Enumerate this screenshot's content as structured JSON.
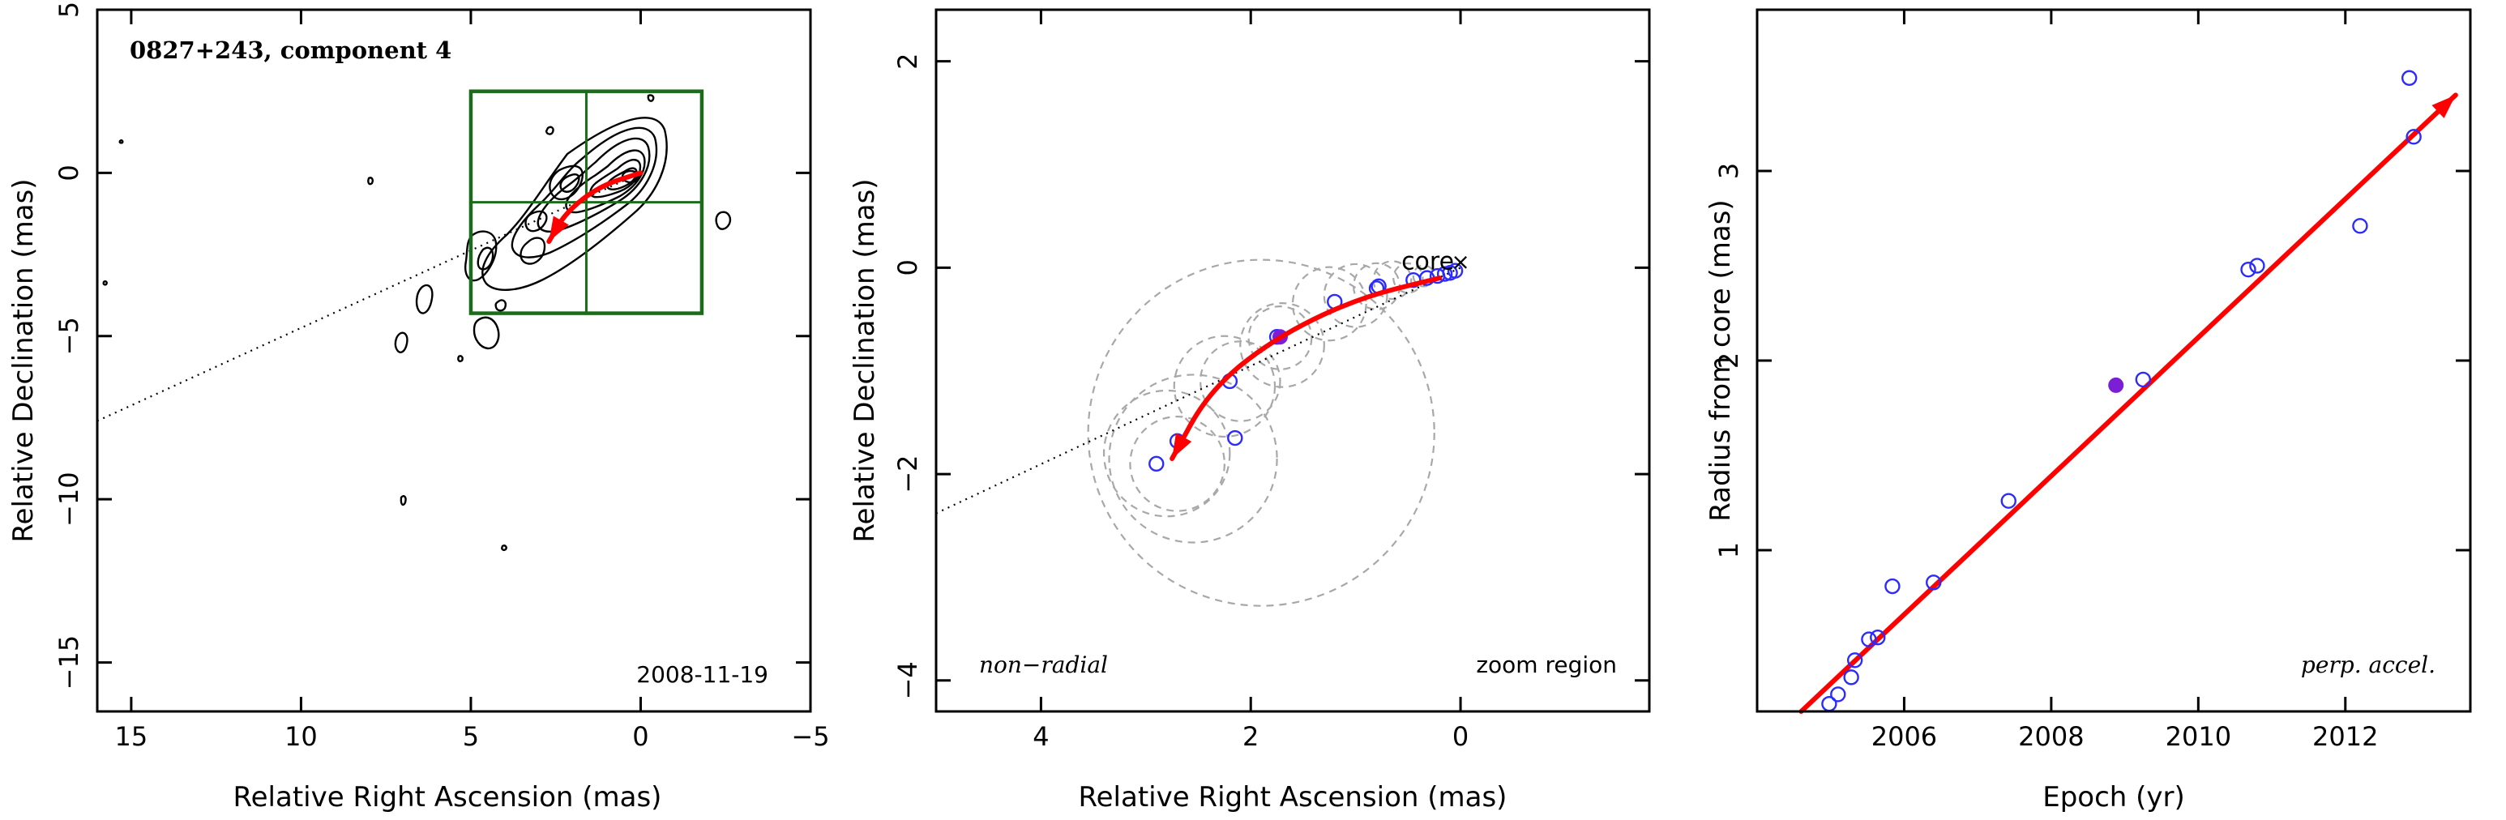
{
  "colors": {
    "axes": "#000000",
    "contours": "#000000",
    "zoom_box": "#1b6b1b",
    "arrow": "#ff0000",
    "points_open": "#2b2bff",
    "point_current": "#7a1fd6",
    "fit_circles": "#a8a8a8"
  },
  "chart_data": [
    {
      "type": "contour",
      "title": "0827+243, component 4",
      "date_label": "2008-11-19",
      "xlabel": "Relative Right Ascension (mas)",
      "ylabel": "Relative Declination (mas)",
      "xlim": [
        16,
        -5
      ],
      "ylim": [
        -16.5,
        5
      ],
      "x_ticks": [
        "15",
        "10",
        "5",
        "0",
        "−5"
      ],
      "y_ticks": [
        "5",
        "0",
        "−5",
        "−10",
        "−15"
      ],
      "x_tick_values": [
        15,
        10,
        5,
        0,
        -5
      ],
      "y_tick_values": [
        5,
        0,
        -5,
        -10,
        -15
      ],
      "zoom_region": {
        "ra_range": [
          5,
          -1.8
        ],
        "dec_range": [
          -4.3,
          2.5
        ]
      },
      "jet_axis_line": {
        "from": [
          16,
          -7.6
        ],
        "to": [
          0,
          0
        ]
      },
      "motion_path": [
        [
          0,
          0
        ],
        [
          1.2,
          -0.4
        ],
        [
          2.2,
          -1.2
        ],
        [
          2.7,
          -2.1
        ]
      ]
    },
    {
      "type": "scatter",
      "xlabel": "Relative Right Ascension (mas)",
      "ylabel": "Relative Declination (mas)",
      "xlim": [
        5,
        -1.8
      ],
      "ylim": [
        -4.3,
        2.5
      ],
      "x_ticks": [
        "4",
        "2",
        "0"
      ],
      "y_ticks": [
        "2",
        "0",
        "−2",
        "−4"
      ],
      "x_tick_values": [
        4,
        2,
        0
      ],
      "y_tick_values": [
        2,
        0,
        -2,
        -4
      ],
      "annotations": {
        "left": "non−radial",
        "right": "zoom region",
        "core": "core"
      },
      "core_position": [
        0,
        0
      ],
      "points": [
        {
          "x": 2.9,
          "y": -1.9
        },
        {
          "x": 2.7,
          "y": -1.68
        },
        {
          "x": 2.15,
          "y": -1.65
        },
        {
          "x": 2.2,
          "y": -1.1
        },
        {
          "x": 1.75,
          "y": -0.67
        },
        {
          "x": 1.2,
          "y": -0.33
        },
        {
          "x": 0.8,
          "y": -0.2
        },
        {
          "x": 0.78,
          "y": -0.18
        },
        {
          "x": 0.45,
          "y": -0.12
        },
        {
          "x": 0.32,
          "y": -0.1
        },
        {
          "x": 0.22,
          "y": -0.08
        },
        {
          "x": 0.15,
          "y": -0.06
        },
        {
          "x": 0.1,
          "y": -0.05
        },
        {
          "x": 0.05,
          "y": -0.03
        }
      ],
      "current_point": {
        "x": 1.72,
        "y": -0.67
      },
      "fit_circles": [
        {
          "x": 2.7,
          "y": -1.9,
          "r": 0.45
        },
        {
          "x": 2.8,
          "y": -1.8,
          "r": 0.6
        },
        {
          "x": 2.55,
          "y": -1.85,
          "r": 0.8
        },
        {
          "x": 2.1,
          "y": -1.1,
          "r": 0.38
        },
        {
          "x": 2.25,
          "y": -1.15,
          "r": 0.48
        },
        {
          "x": 1.7,
          "y": -0.75,
          "r": 0.4
        },
        {
          "x": 1.72,
          "y": -0.68,
          "r": 0.3
        },
        {
          "x": 1.25,
          "y": -0.35,
          "r": 0.35
        },
        {
          "x": 1.0,
          "y": -0.27,
          "r": 0.3
        },
        {
          "x": 0.8,
          "y": -0.18,
          "r": 0.22
        },
        {
          "x": 0.65,
          "y": -0.12,
          "r": 0.18
        },
        {
          "x": 0.5,
          "y": -0.1,
          "r": 0.14
        },
        {
          "x": 0.35,
          "y": -0.08,
          "r": 0.1
        },
        {
          "x": 1.9,
          "y": -1.6,
          "r": 1.65
        }
      ],
      "jet_axis_line": {
        "from": [
          5,
          -2.38
        ],
        "to": [
          0,
          0
        ]
      },
      "motion_path": [
        [
          0.2,
          -0.1
        ],
        [
          1.0,
          -0.3
        ],
        [
          1.8,
          -0.7
        ],
        [
          2.4,
          -1.2
        ],
        [
          2.75,
          -1.85
        ]
      ]
    },
    {
      "type": "scatter",
      "xlabel": "Epoch (yr)",
      "ylabel": "Radius from core (mas)",
      "annotation": "perp. accel.",
      "xlim": [
        2004.0,
        2013.7
      ],
      "ylim": [
        0.15,
        3.85
      ],
      "x_ticks": [
        "2006",
        "2008",
        "2010",
        "2012"
      ],
      "y_ticks": [
        "1",
        "2",
        "3"
      ],
      "x_tick_values": [
        2006,
        2008,
        2010,
        2012
      ],
      "y_tick_values": [
        1,
        2,
        3
      ],
      "points": [
        {
          "x": 2004.98,
          "y": 0.19
        },
        {
          "x": 2005.1,
          "y": 0.24
        },
        {
          "x": 2005.28,
          "y": 0.33
        },
        {
          "x": 2005.33,
          "y": 0.42
        },
        {
          "x": 2005.52,
          "y": 0.53
        },
        {
          "x": 2005.64,
          "y": 0.54
        },
        {
          "x": 2005.84,
          "y": 0.81
        },
        {
          "x": 2006.4,
          "y": 0.83
        },
        {
          "x": 2007.42,
          "y": 1.26
        },
        {
          "x": 2009.25,
          "y": 1.9
        },
        {
          "x": 2010.68,
          "y": 2.48
        },
        {
          "x": 2010.8,
          "y": 2.5
        },
        {
          "x": 2012.2,
          "y": 2.71
        },
        {
          "x": 2012.87,
          "y": 3.49
        },
        {
          "x": 2012.93,
          "y": 3.18
        }
      ],
      "current_point": {
        "x": 2008.88,
        "y": 1.87
      },
      "fit_line": {
        "x": [
          2004.6,
          2013.5
        ],
        "y": [
          0.15,
          3.4
        ]
      }
    }
  ]
}
